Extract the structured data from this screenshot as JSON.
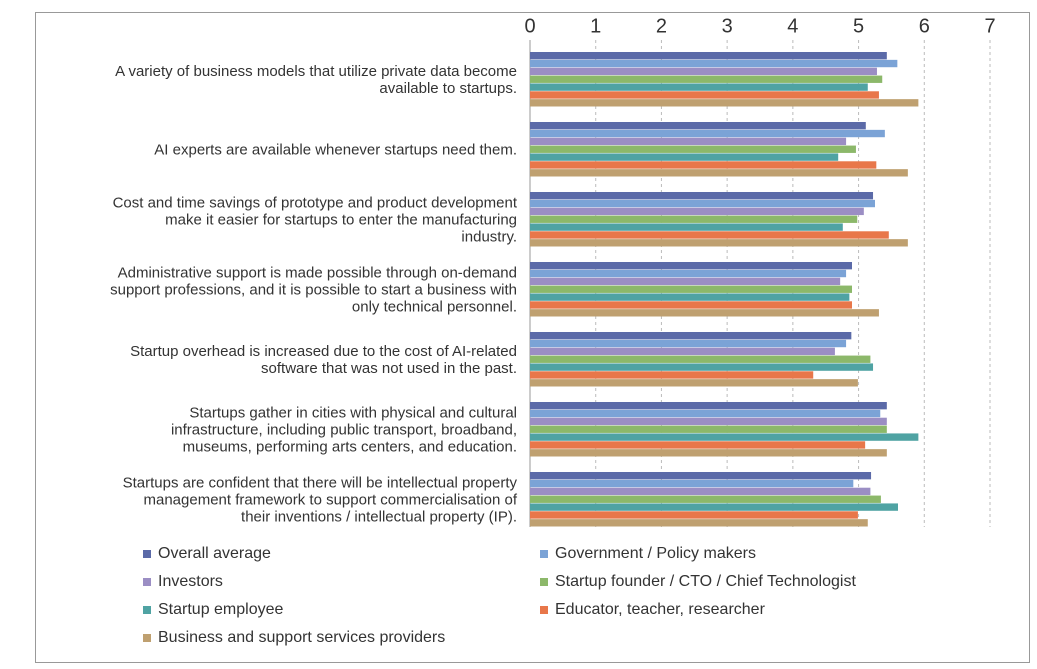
{
  "chart_data": {
    "type": "bar",
    "orientation": "horizontal",
    "categories": [
      "A variety of business models that utilize private data become\navailable to startups.",
      "AI experts are available whenever startups need them.",
      "Cost and time savings of prototype and product development\nmake it easier for startups to enter the manufacturing\nindustry.",
      "Administrative support is made possible through on-demand\nsupport professions, and it is possible to start a business with\nonly technical personnel.",
      "Startup overhead is increased due to the cost of AI-related\nsoftware that was not used in the past.",
      "Startups gather in cities with physical and cultural\ninfrastructure, including public transport, broadband,\nmuseums, performing arts centers, and education.",
      "Startups are confident that there will be intellectual property\nmanagement framework to support commercialisation of\ntheir inventions / intellectual property (IP)."
    ],
    "series": [
      {
        "name": "Overall average",
        "color": "#5b6aa8",
        "values": [
          5.43,
          5.11,
          5.22,
          4.9,
          4.89,
          5.43,
          5.19
        ]
      },
      {
        "name": "Government / Policy makers",
        "color": "#7ba3d6",
        "values": [
          5.59,
          5.4,
          5.25,
          4.81,
          4.81,
          5.33,
          4.92
        ]
      },
      {
        "name": "Investors",
        "color": "#9b8ec4",
        "values": [
          5.28,
          4.81,
          5.08,
          4.72,
          4.64,
          5.43,
          5.18
        ]
      },
      {
        "name": "Startup founder / CTO / Chief Technologist",
        "color": "#8cb86a",
        "values": [
          5.36,
          4.96,
          4.98,
          4.9,
          5.18,
          5.43,
          5.34
        ]
      },
      {
        "name": "Startup employee",
        "color": "#4fa3a3",
        "values": [
          5.14,
          4.69,
          4.76,
          4.86,
          5.22,
          5.91,
          5.6
        ]
      },
      {
        "name": "Educator, teacher, researcher",
        "color": "#e8774a",
        "values": [
          5.31,
          5.27,
          5.46,
          4.9,
          4.31,
          5.1,
          4.99
        ]
      },
      {
        "name": "Business and support services providers",
        "color": "#bfa070",
        "values": [
          5.91,
          5.75,
          5.75,
          5.31,
          4.99,
          5.43,
          5.14
        ]
      }
    ],
    "xlim": [
      0,
      7
    ],
    "xticks": [
      0,
      1,
      2,
      3,
      4,
      5,
      6,
      7
    ],
    "grid": true
  }
}
